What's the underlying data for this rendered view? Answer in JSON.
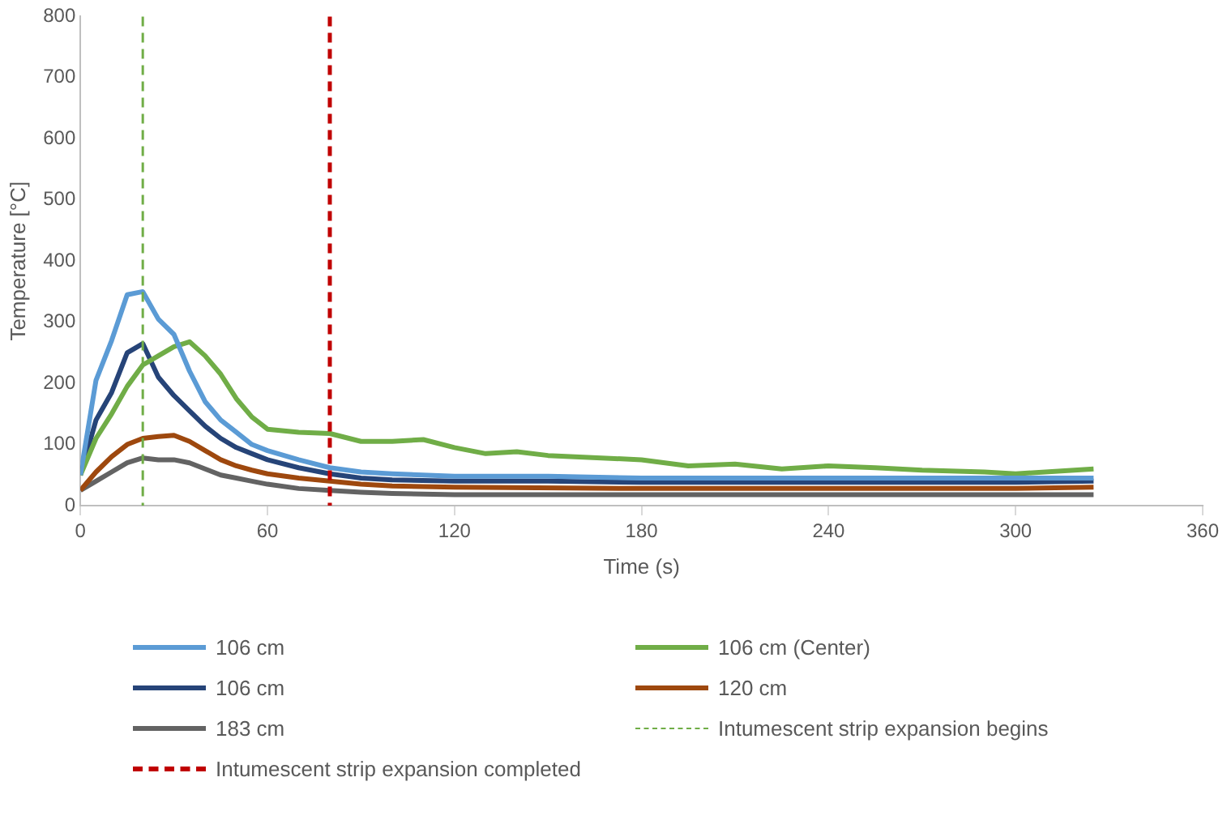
{
  "chart_data": {
    "type": "line",
    "xlabel": "Time (s)",
    "ylabel": "Temperature [°C]",
    "xlim": [
      0,
      360
    ],
    "xticks": [
      0,
      60,
      120,
      180,
      240,
      300,
      360
    ],
    "ylim": [
      0,
      800
    ],
    "yticks": [
      0,
      100,
      200,
      300,
      400,
      500,
      600,
      700,
      800
    ],
    "grid": false,
    "legend": "bottom",
    "marker": "none",
    "line_style": "solid",
    "series": [
      {
        "name": "106 cm",
        "color": "#5b9bd5",
        "x": [
          0,
          5,
          10,
          15,
          20,
          25,
          30,
          35,
          40,
          45,
          50,
          55,
          60,
          70,
          80,
          90,
          100,
          120,
          150,
          180,
          210,
          240,
          270,
          300,
          325
        ],
        "values": [
          50,
          205,
          270,
          345,
          350,
          305,
          280,
          220,
          170,
          140,
          120,
          100,
          90,
          75,
          62,
          55,
          52,
          48,
          48,
          45,
          45,
          45,
          45,
          45,
          45
        ]
      },
      {
        "name": "106 cm (Center)",
        "color": "#70ad47",
        "x": [
          0,
          5,
          10,
          15,
          20,
          25,
          30,
          35,
          40,
          45,
          50,
          55,
          60,
          70,
          80,
          90,
          100,
          110,
          120,
          130,
          140,
          150,
          180,
          195,
          210,
          225,
          240,
          255,
          270,
          290,
          300,
          325
        ],
        "values": [
          50,
          110,
          150,
          195,
          230,
          245,
          260,
          268,
          245,
          215,
          175,
          145,
          125,
          120,
          118,
          105,
          105,
          108,
          95,
          85,
          88,
          82,
          75,
          65,
          68,
          60,
          65,
          62,
          58,
          55,
          52,
          60
        ]
      },
      {
        "name": "106 cm",
        "color": "#264478",
        "x": [
          0,
          5,
          10,
          15,
          20,
          25,
          30,
          35,
          40,
          45,
          50,
          55,
          60,
          70,
          80,
          90,
          100,
          120,
          150,
          180,
          240,
          300,
          325
        ],
        "values": [
          50,
          140,
          185,
          250,
          265,
          210,
          180,
          155,
          130,
          110,
          95,
          85,
          75,
          62,
          52,
          45,
          42,
          40,
          40,
          38,
          38,
          38,
          40
        ]
      },
      {
        "name": "120 cm",
        "color": "#9e480e",
        "x": [
          0,
          5,
          10,
          15,
          20,
          25,
          30,
          35,
          40,
          45,
          50,
          55,
          60,
          70,
          80,
          90,
          100,
          120,
          180,
          240,
          300,
          325
        ],
        "values": [
          25,
          55,
          80,
          100,
          110,
          113,
          115,
          105,
          90,
          75,
          65,
          58,
          52,
          45,
          40,
          35,
          32,
          30,
          28,
          28,
          28,
          30
        ]
      },
      {
        "name": "183 cm",
        "color": "#636363",
        "x": [
          0,
          5,
          10,
          15,
          20,
          25,
          30,
          35,
          40,
          45,
          50,
          55,
          60,
          70,
          80,
          90,
          100,
          120,
          180,
          240,
          300,
          325
        ],
        "values": [
          25,
          40,
          55,
          70,
          78,
          75,
          75,
          70,
          60,
          50,
          45,
          40,
          35,
          28,
          25,
          22,
          20,
          18,
          18,
          18,
          18,
          18
        ]
      }
    ],
    "ref_lines": [
      {
        "axis": "x",
        "value": 20,
        "label": "Intumescent strip expansion begins",
        "color": "#70ad47",
        "line_style": "dashed"
      },
      {
        "axis": "x",
        "value": 80,
        "label": "Intumescent strip expansion completed",
        "color": "#c00000",
        "line_style": "dashed"
      }
    ]
  }
}
